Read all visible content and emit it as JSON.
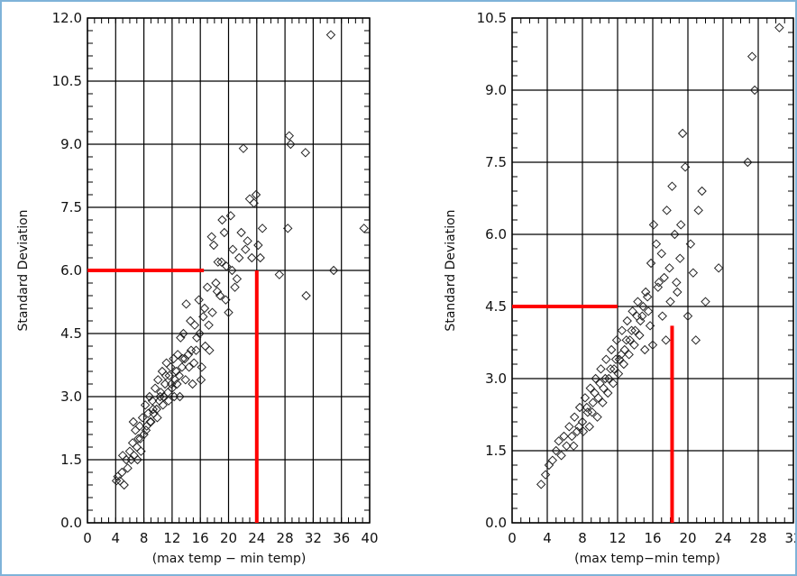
{
  "chart_data": [
    {
      "type": "scatter",
      "marker": "diamond",
      "marker_color": "#222222",
      "xlabel": "(max temp − min temp)",
      "ylabel": "Standard Deviation",
      "xlim": [
        0,
        40
      ],
      "ylim": [
        0,
        12
      ],
      "x_ticks": [
        "0",
        "4",
        "8",
        "12",
        "16",
        "20",
        "24",
        "28",
        "32",
        "36",
        "40"
      ],
      "y_ticks": [
        "0.0",
        "1.5",
        "3.0",
        "4.5",
        "6.0",
        "7.5",
        "9.0",
        "10.5",
        "12.0"
      ],
      "grid": true,
      "guides": [
        {
          "color": "#ff0000",
          "orientation": "horizontal",
          "value": 6.0,
          "from": 0,
          "to": 16.5
        },
        {
          "color": "#ff0000",
          "orientation": "vertical",
          "value": 24.0,
          "from": 0,
          "to": 6.0
        }
      ],
      "points": [
        [
          4.1,
          1.0
        ],
        [
          4.3,
          1.1
        ],
        [
          4.6,
          1.0
        ],
        [
          4.9,
          1.2
        ],
        [
          5.0,
          1.6
        ],
        [
          5.2,
          0.9
        ],
        [
          5.5,
          1.5
        ],
        [
          5.7,
          1.3
        ],
        [
          6.0,
          1.7
        ],
        [
          6.2,
          1.5
        ],
        [
          6.4,
          1.9
        ],
        [
          6.6,
          1.6
        ],
        [
          6.8,
          2.2
        ],
        [
          7.0,
          1.8
        ],
        [
          7.2,
          2.0
        ],
        [
          7.4,
          2.3
        ],
        [
          7.6,
          1.7
        ],
        [
          7.8,
          2.5
        ],
        [
          8.0,
          2.1
        ],
        [
          8.2,
          2.8
        ],
        [
          8.4,
          2.3
        ],
        [
          8.6,
          2.6
        ],
        [
          8.8,
          3.0
        ],
        [
          9.0,
          2.4
        ],
        [
          9.2,
          2.9
        ],
        [
          9.4,
          2.6
        ],
        [
          9.6,
          3.2
        ],
        [
          9.8,
          2.7
        ],
        [
          10.0,
          3.4
        ],
        [
          10.2,
          2.9
        ],
        [
          10.4,
          3.1
        ],
        [
          10.6,
          3.6
        ],
        [
          10.8,
          3.0
        ],
        [
          11.0,
          3.3
        ],
        [
          11.2,
          3.8
        ],
        [
          11.4,
          3.1
        ],
        [
          11.6,
          3.5
        ],
        [
          11.8,
          3.7
        ],
        [
          12.0,
          3.2
        ],
        [
          12.2,
          3.9
        ],
        [
          12.4,
          3.4
        ],
        [
          12.6,
          3.6
        ],
        [
          12.8,
          4.0
        ],
        [
          13.0,
          3.5
        ],
        [
          13.2,
          4.4
        ],
        [
          13.4,
          3.7
        ],
        [
          13.6,
          4.5
        ],
        [
          13.8,
          3.9
        ],
        [
          14.0,
          5.2
        ],
        [
          14.3,
          4.0
        ],
        [
          14.6,
          4.8
        ],
        [
          14.9,
          3.3
        ],
        [
          15.2,
          4.7
        ],
        [
          15.5,
          4.4
        ],
        [
          15.8,
          5.3
        ],
        [
          16.1,
          3.4
        ],
        [
          16.4,
          4.9
        ],
        [
          16.7,
          4.2
        ],
        [
          17.0,
          5.6
        ],
        [
          17.3,
          4.1
        ],
        [
          17.6,
          6.8
        ],
        [
          17.9,
          6.6
        ],
        [
          18.2,
          5.7
        ],
        [
          18.5,
          6.2
        ],
        [
          18.8,
          5.4
        ],
        [
          19.1,
          7.2
        ],
        [
          19.4,
          6.9
        ],
        [
          19.7,
          6.1
        ],
        [
          20.0,
          5.0
        ],
        [
          20.3,
          7.3
        ],
        [
          20.6,
          6.5
        ],
        [
          20.9,
          5.6
        ],
        [
          21.2,
          5.8
        ],
        [
          21.5,
          6.3
        ],
        [
          21.8,
          6.9
        ],
        [
          22.1,
          8.9
        ],
        [
          22.4,
          6.5
        ],
        [
          22.7,
          6.7
        ],
        [
          23.0,
          7.7
        ],
        [
          23.3,
          6.3
        ],
        [
          23.6,
          7.6
        ],
        [
          23.9,
          7.8
        ],
        [
          24.2,
          6.6
        ],
        [
          24.5,
          6.3
        ],
        [
          24.8,
          7.0
        ],
        [
          27.2,
          5.9
        ],
        [
          28.4,
          7.0
        ],
        [
          28.6,
          9.2
        ],
        [
          28.8,
          9.0
        ],
        [
          30.9,
          8.8
        ],
        [
          31.0,
          5.4
        ],
        [
          34.5,
          11.6
        ],
        [
          34.9,
          6.0
        ],
        [
          39.2,
          7.0
        ],
        [
          6.5,
          2.4
        ],
        [
          7.1,
          1.5
        ],
        [
          7.5,
          2.0
        ],
        [
          8.3,
          2.2
        ],
        [
          8.9,
          2.4
        ],
        [
          9.3,
          2.7
        ],
        [
          9.9,
          2.5
        ],
        [
          10.3,
          3.0
        ],
        [
          10.7,
          2.8
        ],
        [
          11.1,
          3.5
        ],
        [
          11.5,
          2.9
        ],
        [
          11.9,
          3.3
        ],
        [
          12.3,
          3.0
        ],
        [
          12.7,
          3.3
        ],
        [
          13.1,
          3.0
        ],
        [
          13.5,
          3.9
        ],
        [
          13.9,
          3.4
        ],
        [
          14.4,
          3.7
        ],
        [
          14.7,
          4.1
        ],
        [
          15.1,
          3.8
        ],
        [
          15.4,
          4.1
        ],
        [
          15.9,
          4.5
        ],
        [
          16.2,
          3.7
        ],
        [
          16.6,
          5.1
        ],
        [
          17.2,
          4.7
        ],
        [
          17.7,
          5.0
        ],
        [
          18.4,
          5.5
        ],
        [
          19.0,
          6.2
        ],
        [
          19.6,
          5.3
        ],
        [
          20.5,
          6.0
        ]
      ]
    },
    {
      "type": "scatter",
      "marker": "diamond",
      "marker_color": "#222222",
      "xlabel": "(max temp−min temp)",
      "ylabel": "Standard Deviation",
      "xlim": [
        0,
        32
      ],
      "ylim": [
        0,
        10.5
      ],
      "x_ticks": [
        "0",
        "4",
        "8",
        "12",
        "16",
        "20",
        "24",
        "28",
        "32"
      ],
      "y_ticks": [
        "0.0",
        "1.5",
        "3.0",
        "4.5",
        "6.0",
        "7.5",
        "9.0",
        "10.5"
      ],
      "grid": true,
      "guides": [
        {
          "color": "#ff0000",
          "orientation": "horizontal",
          "value": 4.5,
          "from": 0,
          "to": 12.0
        },
        {
          "color": "#ff0000",
          "orientation": "vertical",
          "value": 18.2,
          "from": 0,
          "to": 4.1
        }
      ],
      "points": [
        [
          3.3,
          0.8
        ],
        [
          3.8,
          1.0
        ],
        [
          4.2,
          1.2
        ],
        [
          4.6,
          1.3
        ],
        [
          5.0,
          1.5
        ],
        [
          5.3,
          1.7
        ],
        [
          5.6,
          1.4
        ],
        [
          5.9,
          1.8
        ],
        [
          6.2,
          1.6
        ],
        [
          6.5,
          2.0
        ],
        [
          6.8,
          1.8
        ],
        [
          7.1,
          2.2
        ],
        [
          7.4,
          1.9
        ],
        [
          7.7,
          2.4
        ],
        [
          8.0,
          2.1
        ],
        [
          8.3,
          2.6
        ],
        [
          8.6,
          2.3
        ],
        [
          8.9,
          2.8
        ],
        [
          9.2,
          2.5
        ],
        [
          9.5,
          3.0
        ],
        [
          9.8,
          2.6
        ],
        [
          10.1,
          3.2
        ],
        [
          10.4,
          2.8
        ],
        [
          10.7,
          3.4
        ],
        [
          11.0,
          3.0
        ],
        [
          11.3,
          3.6
        ],
        [
          11.6,
          3.2
        ],
        [
          11.9,
          3.8
        ],
        [
          12.2,
          3.4
        ],
        [
          12.5,
          4.0
        ],
        [
          12.8,
          3.6
        ],
        [
          13.1,
          4.2
        ],
        [
          13.4,
          3.8
        ],
        [
          13.7,
          4.4
        ],
        [
          14.0,
          4.0
        ],
        [
          14.3,
          4.6
        ],
        [
          14.6,
          4.2
        ],
        [
          14.9,
          4.5
        ],
        [
          15.2,
          4.8
        ],
        [
          15.5,
          4.4
        ],
        [
          15.8,
          5.4
        ],
        [
          16.1,
          6.2
        ],
        [
          16.4,
          5.8
        ],
        [
          16.7,
          5.0
        ],
        [
          17.0,
          5.6
        ],
        [
          17.3,
          5.1
        ],
        [
          17.6,
          6.5
        ],
        [
          17.9,
          5.3
        ],
        [
          18.2,
          7.0
        ],
        [
          18.5,
          6.0
        ],
        [
          18.8,
          4.8
        ],
        [
          19.1,
          5.5
        ],
        [
          19.4,
          8.1
        ],
        [
          19.7,
          7.4
        ],
        [
          20.0,
          4.3
        ],
        [
          20.3,
          5.8
        ],
        [
          20.6,
          5.2
        ],
        [
          20.9,
          3.8
        ],
        [
          21.2,
          6.5
        ],
        [
          21.6,
          6.9
        ],
        [
          22.0,
          4.6
        ],
        [
          23.5,
          5.3
        ],
        [
          26.8,
          7.5
        ],
        [
          27.3,
          9.7
        ],
        [
          27.6,
          9.0
        ],
        [
          30.4,
          10.3
        ],
        [
          7.0,
          1.6
        ],
        [
          7.6,
          2.0
        ],
        [
          8.1,
          1.9
        ],
        [
          8.5,
          2.4
        ],
        [
          8.8,
          2.0
        ],
        [
          9.1,
          2.3
        ],
        [
          9.4,
          2.7
        ],
        [
          9.7,
          2.2
        ],
        [
          10.0,
          2.9
        ],
        [
          10.3,
          2.5
        ],
        [
          10.6,
          3.0
        ],
        [
          10.9,
          2.7
        ],
        [
          11.2,
          3.2
        ],
        [
          11.5,
          2.9
        ],
        [
          11.8,
          3.4
        ],
        [
          12.1,
          3.1
        ],
        [
          12.4,
          3.5
        ],
        [
          12.7,
          3.3
        ],
        [
          13.0,
          3.8
        ],
        [
          13.3,
          3.5
        ],
        [
          13.6,
          4.0
        ],
        [
          13.9,
          3.7
        ],
        [
          14.2,
          4.3
        ],
        [
          14.5,
          3.9
        ],
        [
          14.8,
          4.3
        ],
        [
          15.1,
          3.6
        ],
        [
          15.4,
          4.7
        ],
        [
          15.7,
          4.1
        ],
        [
          16.0,
          3.7
        ],
        [
          16.6,
          4.9
        ],
        [
          17.1,
          4.3
        ],
        [
          17.5,
          3.8
        ],
        [
          18.0,
          4.6
        ],
        [
          18.7,
          5.0
        ],
        [
          19.2,
          6.2
        ]
      ]
    }
  ]
}
